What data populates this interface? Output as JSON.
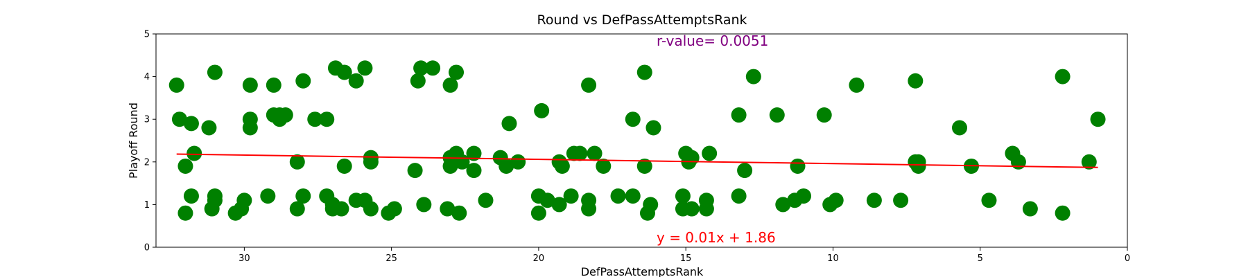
{
  "chart_data": {
    "type": "scatter",
    "title": "Round vs DefPassAttemptsRank",
    "xlabel": "DefPassAttemptsRank",
    "ylabel": "Playoff Round",
    "xlim": [
      33,
      0
    ],
    "ylim": [
      0,
      5
    ],
    "x_inverted": true,
    "xticks": [
      30,
      25,
      20,
      15,
      10,
      5,
      0
    ],
    "yticks": [
      0,
      1,
      2,
      3,
      4,
      5
    ],
    "grid": false,
    "point_color": "#008000",
    "line_color": "#ff0000",
    "r_value_text": "r-value= 0.0051",
    "r_value_color": "#800080",
    "equation_text": "y = 0.01x + 1.86",
    "equation_color": "#ff0000",
    "fit_line": {
      "slope": 0.01,
      "intercept": 1.86,
      "x_range": [
        32.3,
        1.0
      ]
    },
    "points": [
      [
        32.3,
        3.8
      ],
      [
        32.2,
        3.0
      ],
      [
        32.0,
        1.9
      ],
      [
        32.0,
        0.8
      ],
      [
        31.8,
        2.9
      ],
      [
        31.8,
        1.2
      ],
      [
        31.7,
        2.2
      ],
      [
        31.2,
        2.8
      ],
      [
        31.1,
        0.9
      ],
      [
        31.0,
        4.1
      ],
      [
        31.0,
        1.2
      ],
      [
        31.0,
        1.1
      ],
      [
        30.3,
        0.8
      ],
      [
        30.1,
        0.9
      ],
      [
        30.0,
        1.1
      ],
      [
        29.8,
        3.8
      ],
      [
        29.8,
        3.0
      ],
      [
        29.8,
        2.8
      ],
      [
        29.2,
        1.2
      ],
      [
        29.0,
        3.8
      ],
      [
        29.0,
        3.1
      ],
      [
        28.8,
        3.0
      ],
      [
        28.8,
        3.1
      ],
      [
        28.6,
        3.1
      ],
      [
        28.2,
        2.0
      ],
      [
        28.2,
        0.9
      ],
      [
        28.0,
        3.9
      ],
      [
        28.0,
        1.2
      ],
      [
        27.6,
        3.0
      ],
      [
        27.2,
        3.0
      ],
      [
        27.2,
        1.2
      ],
      [
        27.0,
        1.0
      ],
      [
        27.0,
        0.9
      ],
      [
        26.9,
        4.2
      ],
      [
        26.7,
        0.9
      ],
      [
        26.6,
        1.9
      ],
      [
        26.6,
        4.1
      ],
      [
        26.2,
        3.9
      ],
      [
        26.2,
        1.1
      ],
      [
        25.9,
        4.2
      ],
      [
        25.9,
        1.1
      ],
      [
        25.7,
        2.1
      ],
      [
        25.7,
        0.9
      ],
      [
        25.7,
        2.0
      ],
      [
        25.1,
        0.8
      ],
      [
        24.9,
        0.9
      ],
      [
        24.2,
        1.8
      ],
      [
        24.1,
        3.9
      ],
      [
        24.0,
        4.2
      ],
      [
        23.9,
        1.0
      ],
      [
        23.6,
        4.2
      ],
      [
        23.1,
        0.9
      ],
      [
        23.0,
        3.8
      ],
      [
        23.0,
        2.1
      ],
      [
        23.0,
        1.9
      ],
      [
        22.8,
        4.1
      ],
      [
        22.8,
        2.2
      ],
      [
        22.7,
        0.8
      ],
      [
        22.6,
        2.0
      ],
      [
        22.2,
        2.2
      ],
      [
        22.2,
        1.8
      ],
      [
        21.8,
        1.1
      ],
      [
        21.3,
        2.1
      ],
      [
        21.1,
        1.9
      ],
      [
        21.0,
        2.9
      ],
      [
        20.7,
        2.0
      ],
      [
        20.0,
        1.2
      ],
      [
        20.0,
        0.8
      ],
      [
        19.9,
        3.2
      ],
      [
        19.7,
        1.1
      ],
      [
        19.3,
        2.0
      ],
      [
        19.3,
        1.0
      ],
      [
        19.2,
        1.9
      ],
      [
        18.9,
        1.2
      ],
      [
        18.8,
        2.2
      ],
      [
        18.6,
        2.2
      ],
      [
        18.3,
        3.8
      ],
      [
        18.3,
        1.1
      ],
      [
        18.3,
        0.9
      ],
      [
        18.1,
        2.2
      ],
      [
        17.8,
        1.9
      ],
      [
        17.3,
        1.2
      ],
      [
        16.8,
        3.0
      ],
      [
        16.8,
        1.2
      ],
      [
        16.4,
        4.1
      ],
      [
        16.4,
        1.9
      ],
      [
        16.3,
        0.8
      ],
      [
        16.2,
        1.0
      ],
      [
        16.1,
        2.8
      ],
      [
        15.1,
        1.2
      ],
      [
        15.1,
        0.9
      ],
      [
        15.0,
        2.2
      ],
      [
        14.9,
        2.0
      ],
      [
        14.8,
        2.1
      ],
      [
        14.8,
        0.9
      ],
      [
        14.3,
        1.1
      ],
      [
        14.3,
        0.9
      ],
      [
        14.2,
        2.2
      ],
      [
        13.2,
        3.1
      ],
      [
        13.2,
        1.2
      ],
      [
        13.0,
        1.8
      ],
      [
        12.7,
        4.0
      ],
      [
        11.9,
        3.1
      ],
      [
        11.7,
        1.0
      ],
      [
        11.3,
        1.1
      ],
      [
        11.2,
        1.9
      ],
      [
        11.0,
        1.2
      ],
      [
        10.3,
        3.1
      ],
      [
        10.1,
        1.0
      ],
      [
        9.9,
        1.1
      ],
      [
        9.2,
        3.8
      ],
      [
        8.6,
        1.1
      ],
      [
        7.7,
        1.1
      ],
      [
        7.2,
        3.9
      ],
      [
        7.2,
        2.0
      ],
      [
        7.1,
        2.0
      ],
      [
        7.1,
        1.9
      ],
      [
        5.7,
        2.8
      ],
      [
        5.3,
        1.9
      ],
      [
        4.7,
        1.1
      ],
      [
        3.9,
        2.2
      ],
      [
        3.7,
        2.0
      ],
      [
        3.3,
        0.9
      ],
      [
        2.2,
        4.0
      ],
      [
        2.2,
        0.8
      ],
      [
        1.3,
        2.0
      ],
      [
        1.0,
        3.0
      ]
    ]
  }
}
